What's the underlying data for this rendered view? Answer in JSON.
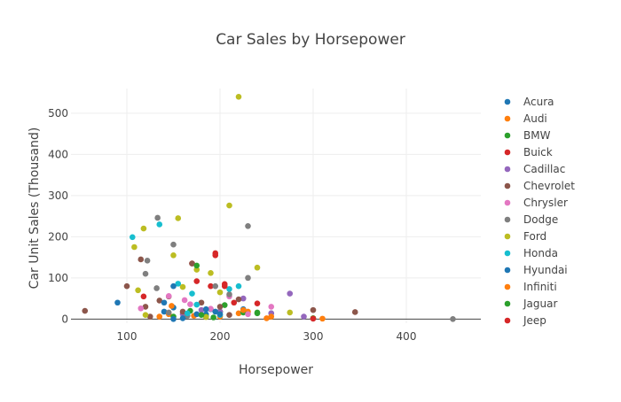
{
  "chart_data": {
    "type": "scatter",
    "title": "Car Sales by Horsepower",
    "xlabel": "Horsepower",
    "ylabel": "Car Unit Sales (Thousand)",
    "xlim": [
      40,
      480
    ],
    "ylim": [
      -10,
      560
    ],
    "xticks": [
      100,
      200,
      300,
      400
    ],
    "yticks": [
      0,
      100,
      200,
      300,
      400,
      500
    ],
    "grid": true,
    "legend_position": "right",
    "series": [
      {
        "name": "Acura",
        "color": "#1f77b4",
        "points": [
          [
            90,
            40
          ],
          [
            140,
            18
          ],
          [
            150,
            28
          ],
          [
            163,
            8
          ],
          [
            185,
            12
          ],
          [
            190,
            24
          ],
          [
            200,
            18
          ],
          [
            225,
            24
          ],
          [
            255,
            14
          ]
        ]
      },
      {
        "name": "Audi",
        "color": "#ff7f0e",
        "points": [
          [
            135,
            6
          ],
          [
            145,
            12
          ],
          [
            172,
            8
          ],
          [
            200,
            6
          ],
          [
            220,
            14
          ],
          [
            230,
            18
          ],
          [
            250,
            2
          ],
          [
            300,
            2
          ],
          [
            310,
            1
          ]
        ]
      },
      {
        "name": "BMW",
        "color": "#2ca02c",
        "points": [
          [
            150,
            6
          ],
          [
            168,
            20
          ],
          [
            185,
            6
          ],
          [
            193,
            4
          ],
          [
            200,
            18
          ],
          [
            205,
            34
          ],
          [
            225,
            16
          ],
          [
            240,
            14
          ]
        ]
      },
      {
        "name": "Buick",
        "color": "#d62728",
        "points": [
          [
            118,
            55
          ],
          [
            170,
            135
          ],
          [
            190,
            80
          ],
          [
            195,
            155
          ],
          [
            205,
            85
          ],
          [
            215,
            40
          ]
        ]
      },
      {
        "name": "Cadillac",
        "color": "#9467bd",
        "points": [
          [
            160,
            12
          ],
          [
            180,
            22
          ],
          [
            200,
            18
          ],
          [
            225,
            50
          ],
          [
            255,
            14
          ],
          [
            275,
            62
          ],
          [
            290,
            6
          ]
        ]
      },
      {
        "name": "Chevrolet",
        "color": "#8c564b",
        "points": [
          [
            55,
            20
          ],
          [
            100,
            80
          ],
          [
            115,
            145
          ],
          [
            120,
            30
          ],
          [
            125,
            6
          ],
          [
            135,
            45
          ],
          [
            145,
            55
          ],
          [
            160,
            18
          ],
          [
            170,
            135
          ],
          [
            180,
            40
          ],
          [
            200,
            30
          ],
          [
            210,
            10
          ],
          [
            220,
            48
          ],
          [
            300,
            22
          ],
          [
            345,
            17
          ]
        ]
      },
      {
        "name": "Chrysler",
        "color": "#e377c2",
        "points": [
          [
            115,
            26
          ],
          [
            145,
            56
          ],
          [
            162,
            46
          ],
          [
            168,
            36
          ],
          [
            190,
            25
          ],
          [
            210,
            55
          ],
          [
            230,
            12
          ],
          [
            255,
            30
          ]
        ]
      },
      {
        "name": "Dodge",
        "color": "#7f7f7f",
        "points": [
          [
            122,
            142
          ],
          [
            133,
            246
          ],
          [
            150,
            181
          ],
          [
            120,
            110
          ],
          [
            132,
            75
          ],
          [
            145,
            16
          ],
          [
            165,
            8
          ],
          [
            195,
            80
          ],
          [
            210,
            60
          ],
          [
            230,
            100
          ],
          [
            230,
            226
          ],
          [
            450,
            0
          ]
        ]
      },
      {
        "name": "Ford",
        "color": "#bcbd22",
        "points": [
          [
            108,
            175
          ],
          [
            112,
            70
          ],
          [
            118,
            220
          ],
          [
            120,
            10
          ],
          [
            150,
            155
          ],
          [
            155,
            245
          ],
          [
            160,
            78
          ],
          [
            175,
            120
          ],
          [
            190,
            112
          ],
          [
            200,
            65
          ],
          [
            210,
            276
          ],
          [
            220,
            540
          ],
          [
            240,
            125
          ],
          [
            275,
            16
          ],
          [
            185,
            5
          ]
        ]
      },
      {
        "name": "Honda",
        "color": "#17becf",
        "points": [
          [
            106,
            199
          ],
          [
            135,
            230
          ],
          [
            155,
            86
          ],
          [
            170,
            62
          ],
          [
            175,
            35
          ],
          [
            165,
            14
          ],
          [
            200,
            10
          ],
          [
            210,
            73
          ],
          [
            220,
            80
          ]
        ]
      },
      {
        "name": "Hyundai",
        "color": "#1f77b4",
        "points": [
          [
            140,
            40
          ],
          [
            150,
            80
          ],
          [
            150,
            0
          ],
          [
            160,
            2
          ],
          [
            175,
            12
          ],
          [
            185,
            24
          ],
          [
            195,
            18
          ],
          [
            200,
            12
          ]
        ]
      },
      {
        "name": "Infiniti",
        "color": "#ff7f0e",
        "points": [
          [
            148,
            32
          ],
          [
            225,
            22
          ],
          [
            255,
            6
          ]
        ]
      },
      {
        "name": "Jaguar",
        "color": "#2ca02c",
        "points": [
          [
            175,
            130
          ],
          [
            180,
            10
          ],
          [
            240,
            16
          ],
          [
            300,
            2
          ]
        ]
      },
      {
        "name": "Jeep",
        "color": "#d62728",
        "points": [
          [
            175,
            92
          ],
          [
            195,
            160
          ],
          [
            205,
            80
          ],
          [
            240,
            38
          ],
          [
            300,
            1
          ]
        ]
      }
    ]
  }
}
